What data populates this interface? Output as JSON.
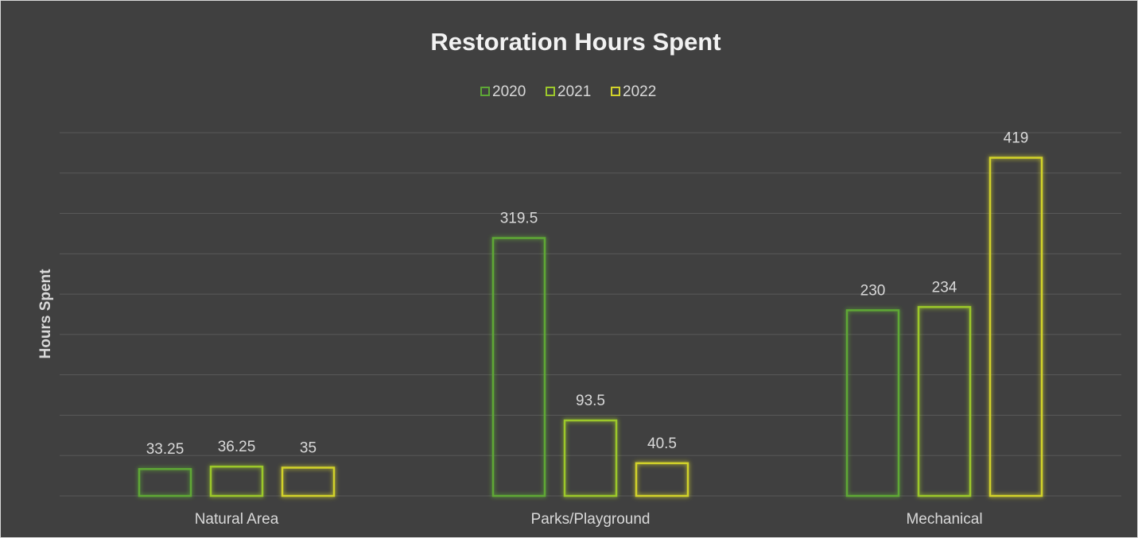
{
  "chart_data": {
    "type": "bar",
    "title": "Restoration Hours Spent",
    "y_label": "Hours Spent",
    "categories": [
      "Natural Area",
      "Parks/Playground",
      "Mechanical"
    ],
    "series": [
      {
        "name": "2020",
        "color": "#5ea836",
        "values": [
          33.25,
          319.5,
          230
        ]
      },
      {
        "name": "2021",
        "color": "#9cc82c",
        "values": [
          36.25,
          93.5,
          234
        ]
      },
      {
        "name": "2022",
        "color": "#d2d22a",
        "values": [
          35,
          40.5,
          419
        ]
      }
    ],
    "ylim": [
      0,
      450
    ],
    "yticks": [
      0,
      50,
      100,
      150,
      200,
      250,
      300,
      350,
      400,
      450
    ],
    "grid": true,
    "legend": "top"
  }
}
